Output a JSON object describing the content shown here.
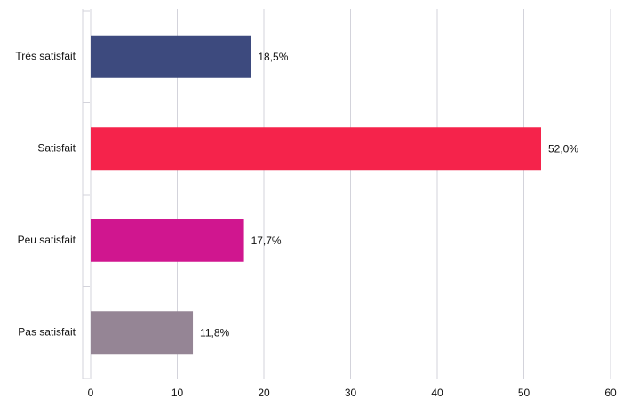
{
  "chart_data": {
    "type": "bar",
    "orientation": "horizontal",
    "categories": [
      "Très satisfait",
      "Satisfait",
      "Peu satisfait",
      "Pas satisfait"
    ],
    "values": [
      18.5,
      52.0,
      17.7,
      11.8
    ],
    "value_labels": [
      "18,5%",
      "52,0%",
      "17,7%",
      "11,8%"
    ],
    "colors": [
      "#3d4a7e",
      "#f5234b",
      "#d0168f",
      "#958595"
    ],
    "xlim": [
      0,
      60
    ],
    "xticks": [
      0,
      10,
      20,
      30,
      40,
      50,
      60
    ],
    "grid": true
  }
}
